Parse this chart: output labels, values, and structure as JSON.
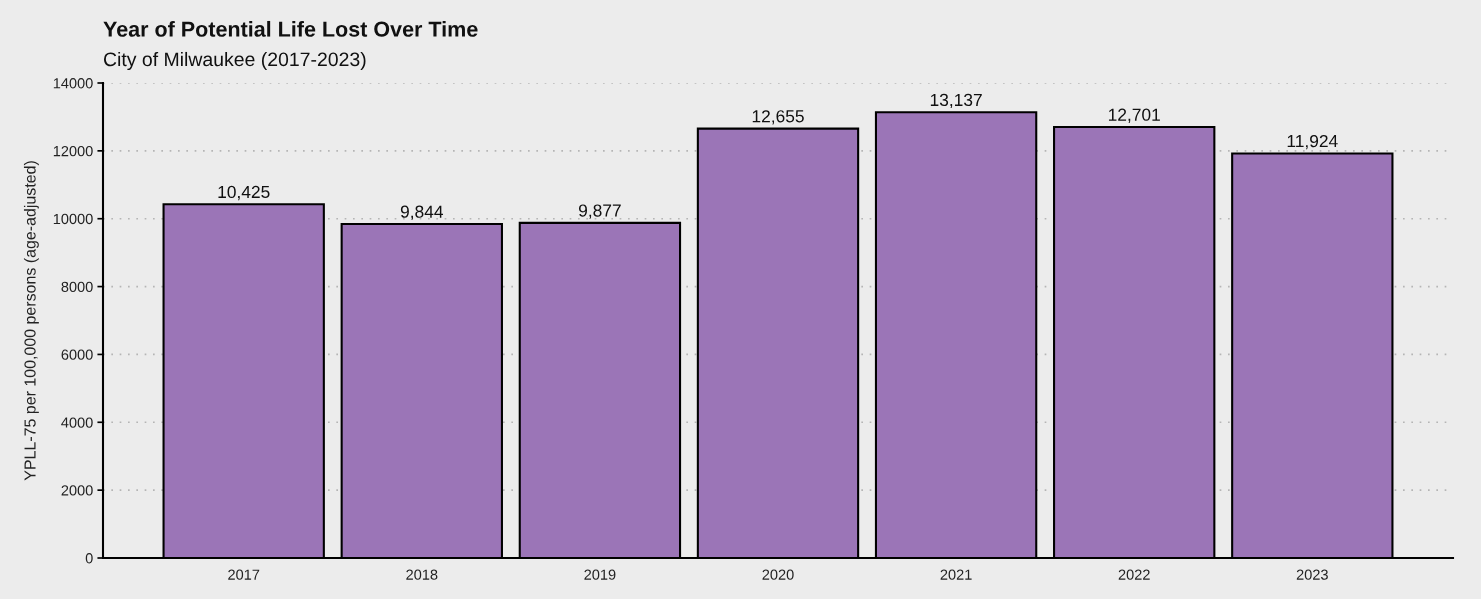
{
  "chart_data": {
    "type": "bar",
    "title": "Year of Potential Life Lost Over Time",
    "subtitle": "City of Milwaukee (2017-2023)",
    "ylabel": "YPLL-75 per 100,000 persons (age-adjusted)",
    "categories": [
      "2017",
      "2018",
      "2019",
      "2020",
      "2021",
      "2022",
      "2023"
    ],
    "values": [
      10425,
      9844,
      9877,
      12655,
      13137,
      12701,
      11924
    ],
    "value_labels": [
      "10,425",
      "9,844",
      "9,877",
      "12,655",
      "13,137",
      "12,701",
      "11,924"
    ],
    "color": "#9b75b7",
    "ylim": [
      0,
      14000
    ],
    "yticks": [
      0,
      2000,
      4000,
      6000,
      8000,
      10000,
      12000,
      14000
    ],
    "grid": "y"
  }
}
